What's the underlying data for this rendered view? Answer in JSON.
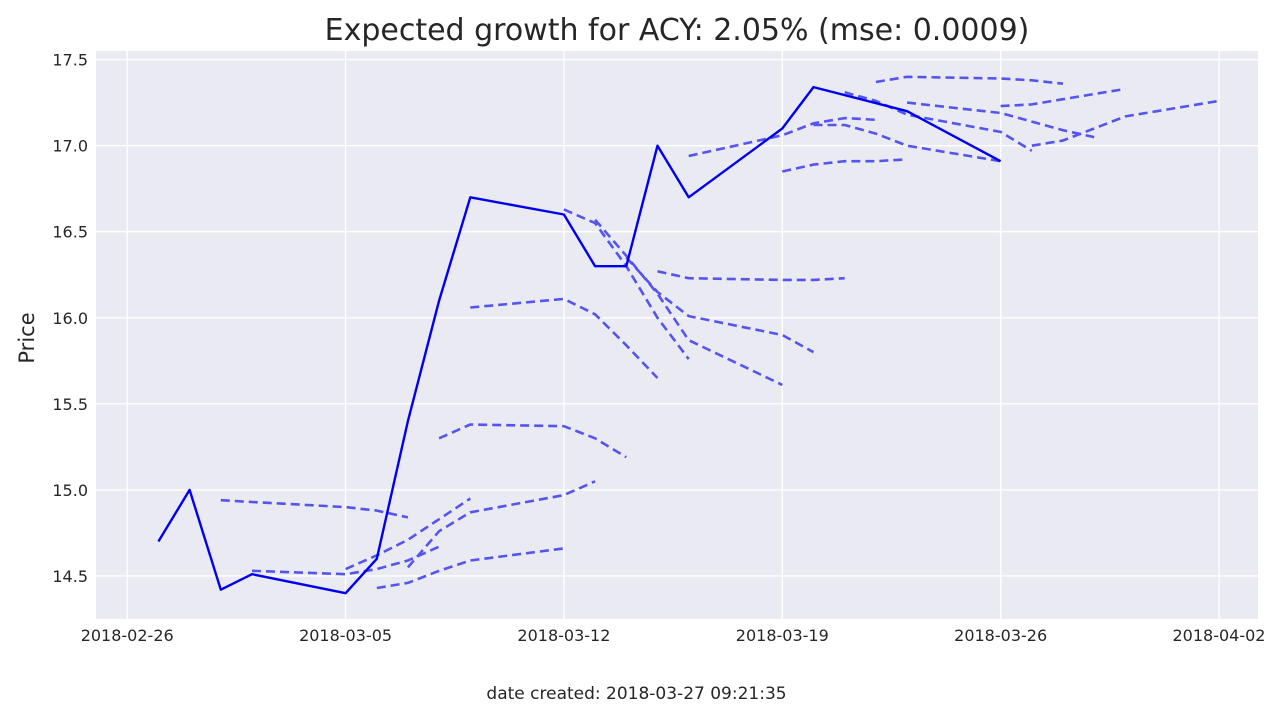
{
  "chart_data": {
    "type": "line",
    "title": "Expected growth for ACY: 2.05% (mse: 0.0009)",
    "xlabel": "",
    "ylabel": "Price",
    "xlim": [
      "2018-02-25",
      "2018-04-02"
    ],
    "ylim": [
      14.25,
      17.55
    ],
    "x_ticks": [
      "2018-02-26",
      "2018-03-05",
      "2018-03-12",
      "2018-03-19",
      "2018-03-26",
      "2018-04-02"
    ],
    "y_ticks": [
      14.5,
      15.0,
      15.5,
      16.0,
      16.5,
      17.0,
      17.5
    ],
    "y_tick_labels": [
      "14.5",
      "15.0",
      "15.5",
      "16.0",
      "16.5",
      "17.0",
      "17.5"
    ],
    "grid": true,
    "background": "#eaeaf2",
    "actual_color": "#0000ee",
    "prediction_color": "#5555ee",
    "footer": "date created: 2018-03-27 09:21:35",
    "series": [
      {
        "style": "solid",
        "points": [
          [
            "2018-02-27",
            14.7
          ],
          [
            "2018-02-28",
            15.0
          ],
          [
            "2018-03-01",
            14.42
          ],
          [
            "2018-03-02",
            14.51
          ],
          [
            "2018-03-05",
            14.4
          ],
          [
            "2018-03-06",
            14.6
          ],
          [
            "2018-03-07",
            15.4
          ],
          [
            "2018-03-08",
            16.1
          ],
          [
            "2018-03-09",
            16.7
          ],
          [
            "2018-03-12",
            16.6
          ],
          [
            "2018-03-13",
            16.3
          ],
          [
            "2018-03-14",
            16.3
          ],
          [
            "2018-03-15",
            17.0
          ],
          [
            "2018-03-16",
            16.7
          ],
          [
            "2018-03-19",
            17.1
          ],
          [
            "2018-03-20",
            17.34
          ],
          [
            "2018-03-23",
            17.2
          ],
          [
            "2018-03-26",
            16.91
          ]
        ]
      },
      {
        "style": "dashed",
        "points": [
          [
            "2018-03-01",
            14.94
          ],
          [
            "2018-03-02",
            14.93
          ],
          [
            "2018-03-05",
            14.9
          ],
          [
            "2018-03-06",
            14.88
          ],
          [
            "2018-03-07",
            14.84
          ]
        ]
      },
      {
        "style": "dashed",
        "points": [
          [
            "2018-03-02",
            14.53
          ],
          [
            "2018-03-05",
            14.51
          ],
          [
            "2018-03-06",
            14.54
          ],
          [
            "2018-03-07",
            14.59
          ],
          [
            "2018-03-08",
            14.67
          ]
        ]
      },
      {
        "style": "dashed",
        "points": [
          [
            "2018-03-05",
            14.54
          ],
          [
            "2018-03-06",
            14.62
          ],
          [
            "2018-03-07",
            14.71
          ],
          [
            "2018-03-08",
            14.83
          ],
          [
            "2018-03-09",
            14.95
          ]
        ]
      },
      {
        "style": "dashed",
        "points": [
          [
            "2018-03-06",
            14.43
          ],
          [
            "2018-03-07",
            14.46
          ],
          [
            "2018-03-08",
            14.53
          ],
          [
            "2018-03-09",
            14.59
          ],
          [
            "2018-03-12",
            14.66
          ]
        ]
      },
      {
        "style": "dashed",
        "points": [
          [
            "2018-03-07",
            14.55
          ],
          [
            "2018-03-08",
            14.76
          ],
          [
            "2018-03-09",
            14.87
          ],
          [
            "2018-03-12",
            14.97
          ],
          [
            "2018-03-13",
            15.05
          ]
        ]
      },
      {
        "style": "dashed",
        "points": [
          [
            "2018-03-08",
            15.3
          ],
          [
            "2018-03-09",
            15.38
          ],
          [
            "2018-03-12",
            15.37
          ],
          [
            "2018-03-13",
            15.3
          ],
          [
            "2018-03-14",
            15.19
          ]
        ]
      },
      {
        "style": "dashed",
        "points": [
          [
            "2018-03-09",
            16.06
          ],
          [
            "2018-03-12",
            16.11
          ],
          [
            "2018-03-13",
            16.02
          ],
          [
            "2018-03-14",
            15.84
          ],
          [
            "2018-03-15",
            15.65
          ]
        ]
      },
      {
        "style": "dashed",
        "points": [
          [
            "2018-03-12",
            16.63
          ],
          [
            "2018-03-13",
            16.55
          ],
          [
            "2018-03-14",
            16.3
          ],
          [
            "2018-03-15",
            16.0
          ],
          [
            "2018-03-16",
            15.76
          ]
        ]
      },
      {
        "style": "dashed",
        "points": [
          [
            "2018-03-13",
            16.57
          ],
          [
            "2018-03-14",
            16.36
          ],
          [
            "2018-03-15",
            16.14
          ],
          [
            "2018-03-16",
            15.87
          ],
          [
            "2018-03-19",
            15.61
          ]
        ]
      },
      {
        "style": "dashed",
        "points": [
          [
            "2018-03-14",
            16.35
          ],
          [
            "2018-03-15",
            16.15
          ],
          [
            "2018-03-16",
            16.01
          ],
          [
            "2018-03-19",
            15.9
          ],
          [
            "2018-03-20",
            15.8
          ]
        ]
      },
      {
        "style": "dashed",
        "points": [
          [
            "2018-03-15",
            16.27
          ],
          [
            "2018-03-16",
            16.23
          ],
          [
            "2018-03-19",
            16.22
          ],
          [
            "2018-03-20",
            16.22
          ],
          [
            "2018-03-21",
            16.23
          ]
        ]
      },
      {
        "style": "dashed",
        "points": [
          [
            "2018-03-16",
            16.94
          ],
          [
            "2018-03-19",
            17.06
          ],
          [
            "2018-03-20",
            17.13
          ],
          [
            "2018-03-21",
            17.16
          ],
          [
            "2018-03-22",
            17.15
          ]
        ]
      },
      {
        "style": "dashed",
        "points": [
          [
            "2018-03-19",
            16.85
          ],
          [
            "2018-03-20",
            16.89
          ],
          [
            "2018-03-21",
            16.91
          ],
          [
            "2018-03-22",
            16.91
          ],
          [
            "2018-03-23",
            16.92
          ]
        ]
      },
      {
        "style": "dashed",
        "points": [
          [
            "2018-03-20",
            17.12
          ],
          [
            "2018-03-21",
            17.12
          ],
          [
            "2018-03-22",
            17.07
          ],
          [
            "2018-03-23",
            17.0
          ],
          [
            "2018-03-26",
            16.91
          ]
        ]
      },
      {
        "style": "dashed",
        "points": [
          [
            "2018-03-21",
            17.31
          ],
          [
            "2018-03-22",
            17.26
          ],
          [
            "2018-03-23",
            17.18
          ],
          [
            "2018-03-26",
            17.08
          ],
          [
            "2018-03-27",
            16.97
          ]
        ]
      },
      {
        "style": "dashed",
        "points": [
          [
            "2018-03-22",
            17.37
          ],
          [
            "2018-03-23",
            17.4
          ],
          [
            "2018-03-26",
            17.39
          ],
          [
            "2018-03-27",
            17.38
          ],
          [
            "2018-03-28",
            17.36
          ]
        ]
      },
      {
        "style": "dashed",
        "points": [
          [
            "2018-03-23",
            17.25
          ],
          [
            "2018-03-26",
            17.19
          ],
          [
            "2018-03-27",
            17.14
          ],
          [
            "2018-03-28",
            17.09
          ],
          [
            "2018-03-29",
            17.05
          ]
        ]
      },
      {
        "style": "dashed",
        "points": [
          [
            "2018-03-26",
            17.23
          ],
          [
            "2018-03-27",
            17.24
          ],
          [
            "2018-03-28",
            17.27
          ],
          [
            "2018-03-29",
            17.3
          ],
          [
            "2018-03-30",
            17.33
          ]
        ]
      },
      {
        "style": "dashed",
        "points": [
          [
            "2018-03-27",
            17.0
          ],
          [
            "2018-03-28",
            17.03
          ],
          [
            "2018-03-30",
            17.17
          ],
          [
            "2018-04-02",
            17.26
          ]
        ]
      }
    ]
  }
}
